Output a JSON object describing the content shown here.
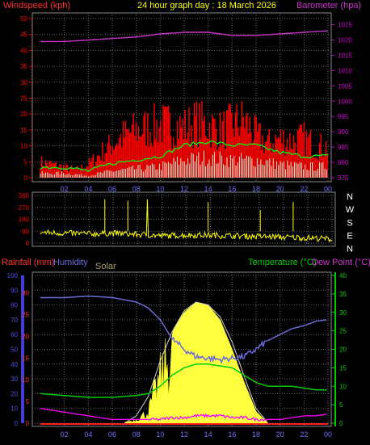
{
  "colors": {
    "wind_label": "#ff3030",
    "title": "#ffff00",
    "baro": "#cc33cc",
    "axis_left_top": "#ff0000",
    "axis_right_top": "#cc00cc",
    "grid": "#666666",
    "frame": "#888888",
    "direction": "#ffff00",
    "rain": "#ff3030",
    "humidity": "#6a6ad8",
    "solar": "#b0a060",
    "temperature": "#00cc00",
    "dewpoint": "#cc33cc",
    "axis_hum": "#5050e0",
    "axis_temp": "#00cc00"
  },
  "chart_data": [
    {
      "type": "bar",
      "title": "24 hour graph day : 18 March 2026",
      "ylabel_left": "Windspeed (kph)",
      "ylabel_right": "Barometer (hpa)",
      "x_ticks": [
        "02",
        "04",
        "06",
        "08",
        "10",
        "12",
        "14",
        "16",
        "18",
        "20",
        "22",
        "00"
      ],
      "y_left_ticks": [
        "0",
        "5",
        "10",
        "15",
        "20",
        "25",
        "30",
        "35",
        "40",
        "45",
        "50"
      ],
      "y_left_range": [
        0,
        50
      ],
      "y_right_ticks": [
        "975",
        "980",
        "985",
        "990",
        "995",
        "1000",
        "1005",
        "1010",
        "1015",
        "1020",
        "1025"
      ],
      "y_right_range": [
        975,
        1027
      ],
      "grid": true,
      "series": [
        {
          "kind": "gust_bars",
          "hours": [
            0,
            1,
            2,
            3,
            4,
            5,
            6,
            7,
            8,
            9,
            10,
            11,
            12,
            13,
            14,
            15,
            16,
            17,
            18,
            19,
            20,
            21,
            22,
            23,
            24
          ],
          "values": [
            6,
            5,
            4,
            3,
            5,
            9,
            13,
            16,
            18,
            19,
            20,
            20,
            19,
            21,
            20,
            18,
            20,
            22,
            16,
            13,
            15,
            14,
            15,
            12,
            12
          ]
        },
        {
          "kind": "average",
          "hours": [
            0,
            2,
            4,
            6,
            8,
            10,
            12,
            14,
            16,
            18,
            20,
            22,
            24
          ],
          "values": [
            2,
            2,
            1,
            3,
            4,
            5,
            8,
            9,
            8,
            8,
            6,
            5,
            5
          ]
        },
        {
          "kind": "barometer",
          "hours": [
            0,
            2,
            4,
            6,
            8,
            10,
            12,
            14,
            16,
            18,
            20,
            22,
            24
          ],
          "values": [
            1019.5,
            1019.5,
            1020,
            1020.5,
            1021,
            1022,
            1022.5,
            1022.5,
            1021.5,
            1021.5,
            1022,
            1022.5,
            1023
          ]
        }
      ]
    },
    {
      "type": "line",
      "y_ticks": [
        "360",
        "270",
        "180",
        "90",
        "0"
      ],
      "y_range": [
        0,
        360
      ],
      "compass": [
        "N",
        "W",
        "S",
        "E",
        "N"
      ],
      "x_ticks": [
        "02",
        "04",
        "06",
        "08",
        "10",
        "12",
        "14",
        "16",
        "18",
        "20",
        "22",
        "00"
      ],
      "series": [
        {
          "kind": "direction",
          "hours": [
            0,
            2,
            4,
            6,
            8,
            10,
            12,
            14,
            16,
            18,
            20,
            22,
            24
          ],
          "values": [
            80,
            75,
            70,
            75,
            65,
            55,
            60,
            60,
            55,
            50,
            45,
            40,
            30
          ]
        }
      ]
    },
    {
      "type": "line",
      "labels": {
        "rain": "Rainfall (mm)",
        "humidity": "Humidity",
        "solar": "Solar",
        "temperature": "Temperature (°C)",
        "dewpoint": "Dew Point (°C)"
      },
      "y_hum_ticks": [
        "0",
        "10",
        "20",
        "30",
        "40",
        "50",
        "60",
        "70",
        "80",
        "90",
        "100"
      ],
      "y_rain_ticks": [
        "0",
        "5",
        "10",
        "15",
        "20",
        "25",
        "30"
      ],
      "y_temp_ticks": [
        "0",
        "5",
        "10",
        "15",
        "20",
        "25",
        "30",
        "35",
        "40"
      ],
      "x_ticks": [
        "02",
        "04",
        "06",
        "08",
        "10",
        "12",
        "14",
        "16",
        "18",
        "20",
        "22",
        "00"
      ],
      "grid": true,
      "series": [
        {
          "kind": "humidity",
          "hours": [
            0,
            2,
            4,
            6,
            8,
            9,
            10,
            11,
            12,
            13,
            14,
            15,
            16,
            17,
            18,
            19,
            20,
            21,
            22,
            23,
            24
          ],
          "values": [
            85,
            85,
            86,
            85,
            82,
            78,
            70,
            57,
            50,
            45,
            44,
            43,
            44,
            45,
            50,
            56,
            60,
            64,
            66,
            69,
            70
          ]
        },
        {
          "kind": "temperature",
          "hours": [
            0,
            2,
            4,
            6,
            8,
            9,
            10,
            11,
            12,
            13,
            14,
            15,
            16,
            17,
            18,
            19,
            20,
            21,
            22,
            23,
            24
          ],
          "values": [
            8,
            7.5,
            7,
            7,
            7.5,
            8,
            10,
            13,
            15,
            16,
            16,
            15.5,
            15,
            13,
            11,
            10,
            10,
            10,
            9.5,
            9,
            9
          ]
        },
        {
          "kind": "dewpoint",
          "hours": [
            0,
            2,
            4,
            6,
            8,
            9,
            10,
            11,
            12,
            13,
            14,
            15,
            16,
            17,
            18,
            19,
            20,
            21,
            22,
            23,
            24
          ],
          "values": [
            4,
            3,
            2,
            1,
            1,
            1,
            1,
            1.5,
            1.5,
            2,
            2,
            2,
            1.5,
            1.5,
            1,
            1,
            1,
            1.5,
            2,
            2,
            2.5
          ]
        },
        {
          "kind": "solar_area",
          "hours": [
            7,
            8,
            9,
            10,
            11,
            12,
            13,
            14,
            15,
            16,
            17,
            18,
            19
          ],
          "values": [
            0,
            3,
            10,
            40,
            62,
            75,
            82,
            80,
            70,
            50,
            28,
            8,
            0
          ]
        },
        {
          "kind": "solar_max",
          "hours": [
            7,
            8,
            9,
            10,
            11,
            12,
            13,
            14,
            15,
            16,
            17,
            18,
            19
          ],
          "values": [
            0,
            5,
            18,
            42,
            62,
            76,
            82,
            80,
            72,
            55,
            32,
            10,
            0
          ]
        },
        {
          "kind": "rain",
          "hours": [
            0,
            24
          ],
          "values": [
            0,
            0
          ]
        }
      ]
    }
  ]
}
